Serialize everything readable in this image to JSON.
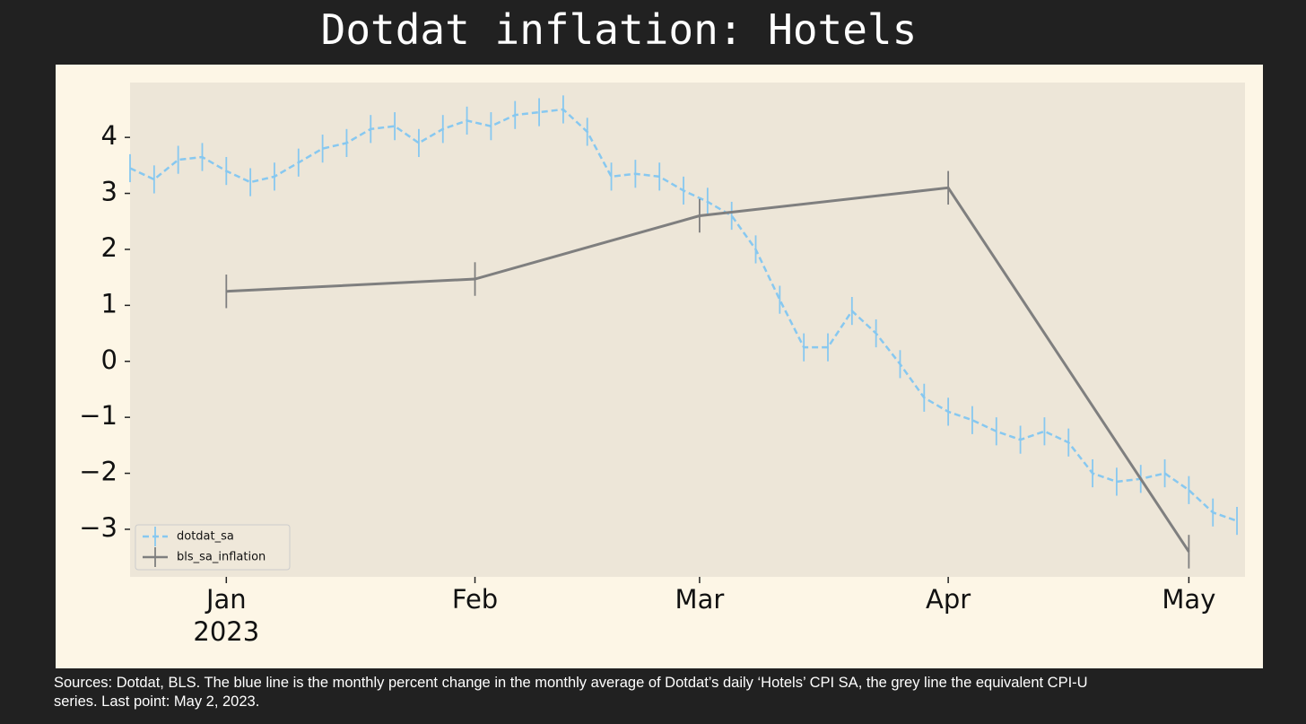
{
  "chart_data": {
    "type": "line",
    "title": "Dotdat inflation: Hotels",
    "footnote": "Sources: Dotdat, BLS. The blue line is the monthly percent change in the monthly average of Dotdat’s daily ‘Hotels’ CPI SA, the grey line the equivalent CPI-U series. Last point: May 2, 2023.",
    "xlim": [
      "2022-12-20",
      "2023-05-08"
    ],
    "xticks": [
      {
        "value": "2023-01-01",
        "label": "Jan"
      },
      {
        "value": "2023-02-01",
        "label": "Feb"
      },
      {
        "value": "2023-03-01",
        "label": "Mar"
      },
      {
        "value": "2023-04-01",
        "label": "Apr"
      },
      {
        "value": "2023-05-01",
        "label": "May"
      }
    ],
    "xtick_year": "2023",
    "ylim": [
      -3.85,
      4.98
    ],
    "yticks": [
      {
        "value": -3,
        "label": "−3"
      },
      {
        "value": -2,
        "label": "−2"
      },
      {
        "value": -1,
        "label": "−1"
      },
      0,
      1,
      2,
      3,
      4
    ],
    "legend": "lower left",
    "series": [
      {
        "name": "dotdat_sa",
        "color": "#87c8f0",
        "linestyle": "dashed",
        "yerr": 0.25,
        "x": [
          "2022-12-20",
          "2022-12-23",
          "2022-12-26",
          "2022-12-29",
          "2023-01-01",
          "2023-01-04",
          "2023-01-07",
          "2023-01-10",
          "2023-01-13",
          "2023-01-16",
          "2023-01-19",
          "2023-01-22",
          "2023-01-25",
          "2023-01-28",
          "2023-01-31",
          "2023-02-03",
          "2023-02-06",
          "2023-02-09",
          "2023-02-12",
          "2023-02-15",
          "2023-02-18",
          "2023-02-21",
          "2023-02-24",
          "2023-02-27",
          "2023-03-02",
          "2023-03-05",
          "2023-03-08",
          "2023-03-11",
          "2023-03-14",
          "2023-03-17",
          "2023-03-20",
          "2023-03-23",
          "2023-03-26",
          "2023-03-29",
          "2023-04-01",
          "2023-04-04",
          "2023-04-07",
          "2023-04-10",
          "2023-04-13",
          "2023-04-16",
          "2023-04-19",
          "2023-04-22",
          "2023-04-25",
          "2023-04-28",
          "2023-05-01",
          "2023-05-04",
          "2023-05-07"
        ],
        "values": [
          3.45,
          3.25,
          3.6,
          3.65,
          3.4,
          3.2,
          3.3,
          3.55,
          3.8,
          3.9,
          4.15,
          4.2,
          3.9,
          4.15,
          4.3,
          4.2,
          4.4,
          4.45,
          4.5,
          4.1,
          3.3,
          3.35,
          3.3,
          3.05,
          2.85,
          2.6,
          2.0,
          1.1,
          0.25,
          0.25,
          0.9,
          0.5,
          -0.05,
          -0.65,
          -0.9,
          -1.05,
          -1.25,
          -1.4,
          -1.25,
          -1.45,
          -2.0,
          -2.15,
          -2.1,
          -2.0,
          -2.3,
          -2.7,
          -2.85
        ]
      },
      {
        "name": "bls_sa_inflation",
        "color": "#7f7f7f",
        "linestyle": "solid",
        "yerr": 0.3,
        "x": [
          "2023-01-01",
          "2023-02-01",
          "2023-03-01",
          "2023-04-01",
          "2023-05-01"
        ],
        "values": [
          1.25,
          1.47,
          2.6,
          3.1,
          -3.4
        ]
      }
    ]
  }
}
